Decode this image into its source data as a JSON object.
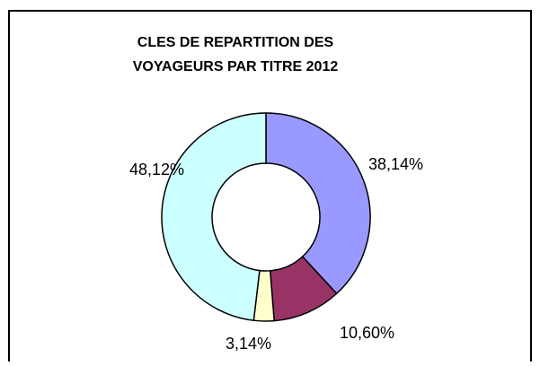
{
  "chart_data": {
    "type": "donut",
    "title": [
      "CLES DE REPARTITION DES",
      "VOYAGEURS PAR TITRE 2012"
    ],
    "values": [
      38.14,
      10.6,
      3.14,
      48.12
    ],
    "value_labels": [
      "38,14%",
      "10,60%",
      "3,14%",
      "48,12%"
    ],
    "colors": [
      "#9999ff",
      "#993366",
      "#ffffcc",
      "#ccffff"
    ]
  }
}
